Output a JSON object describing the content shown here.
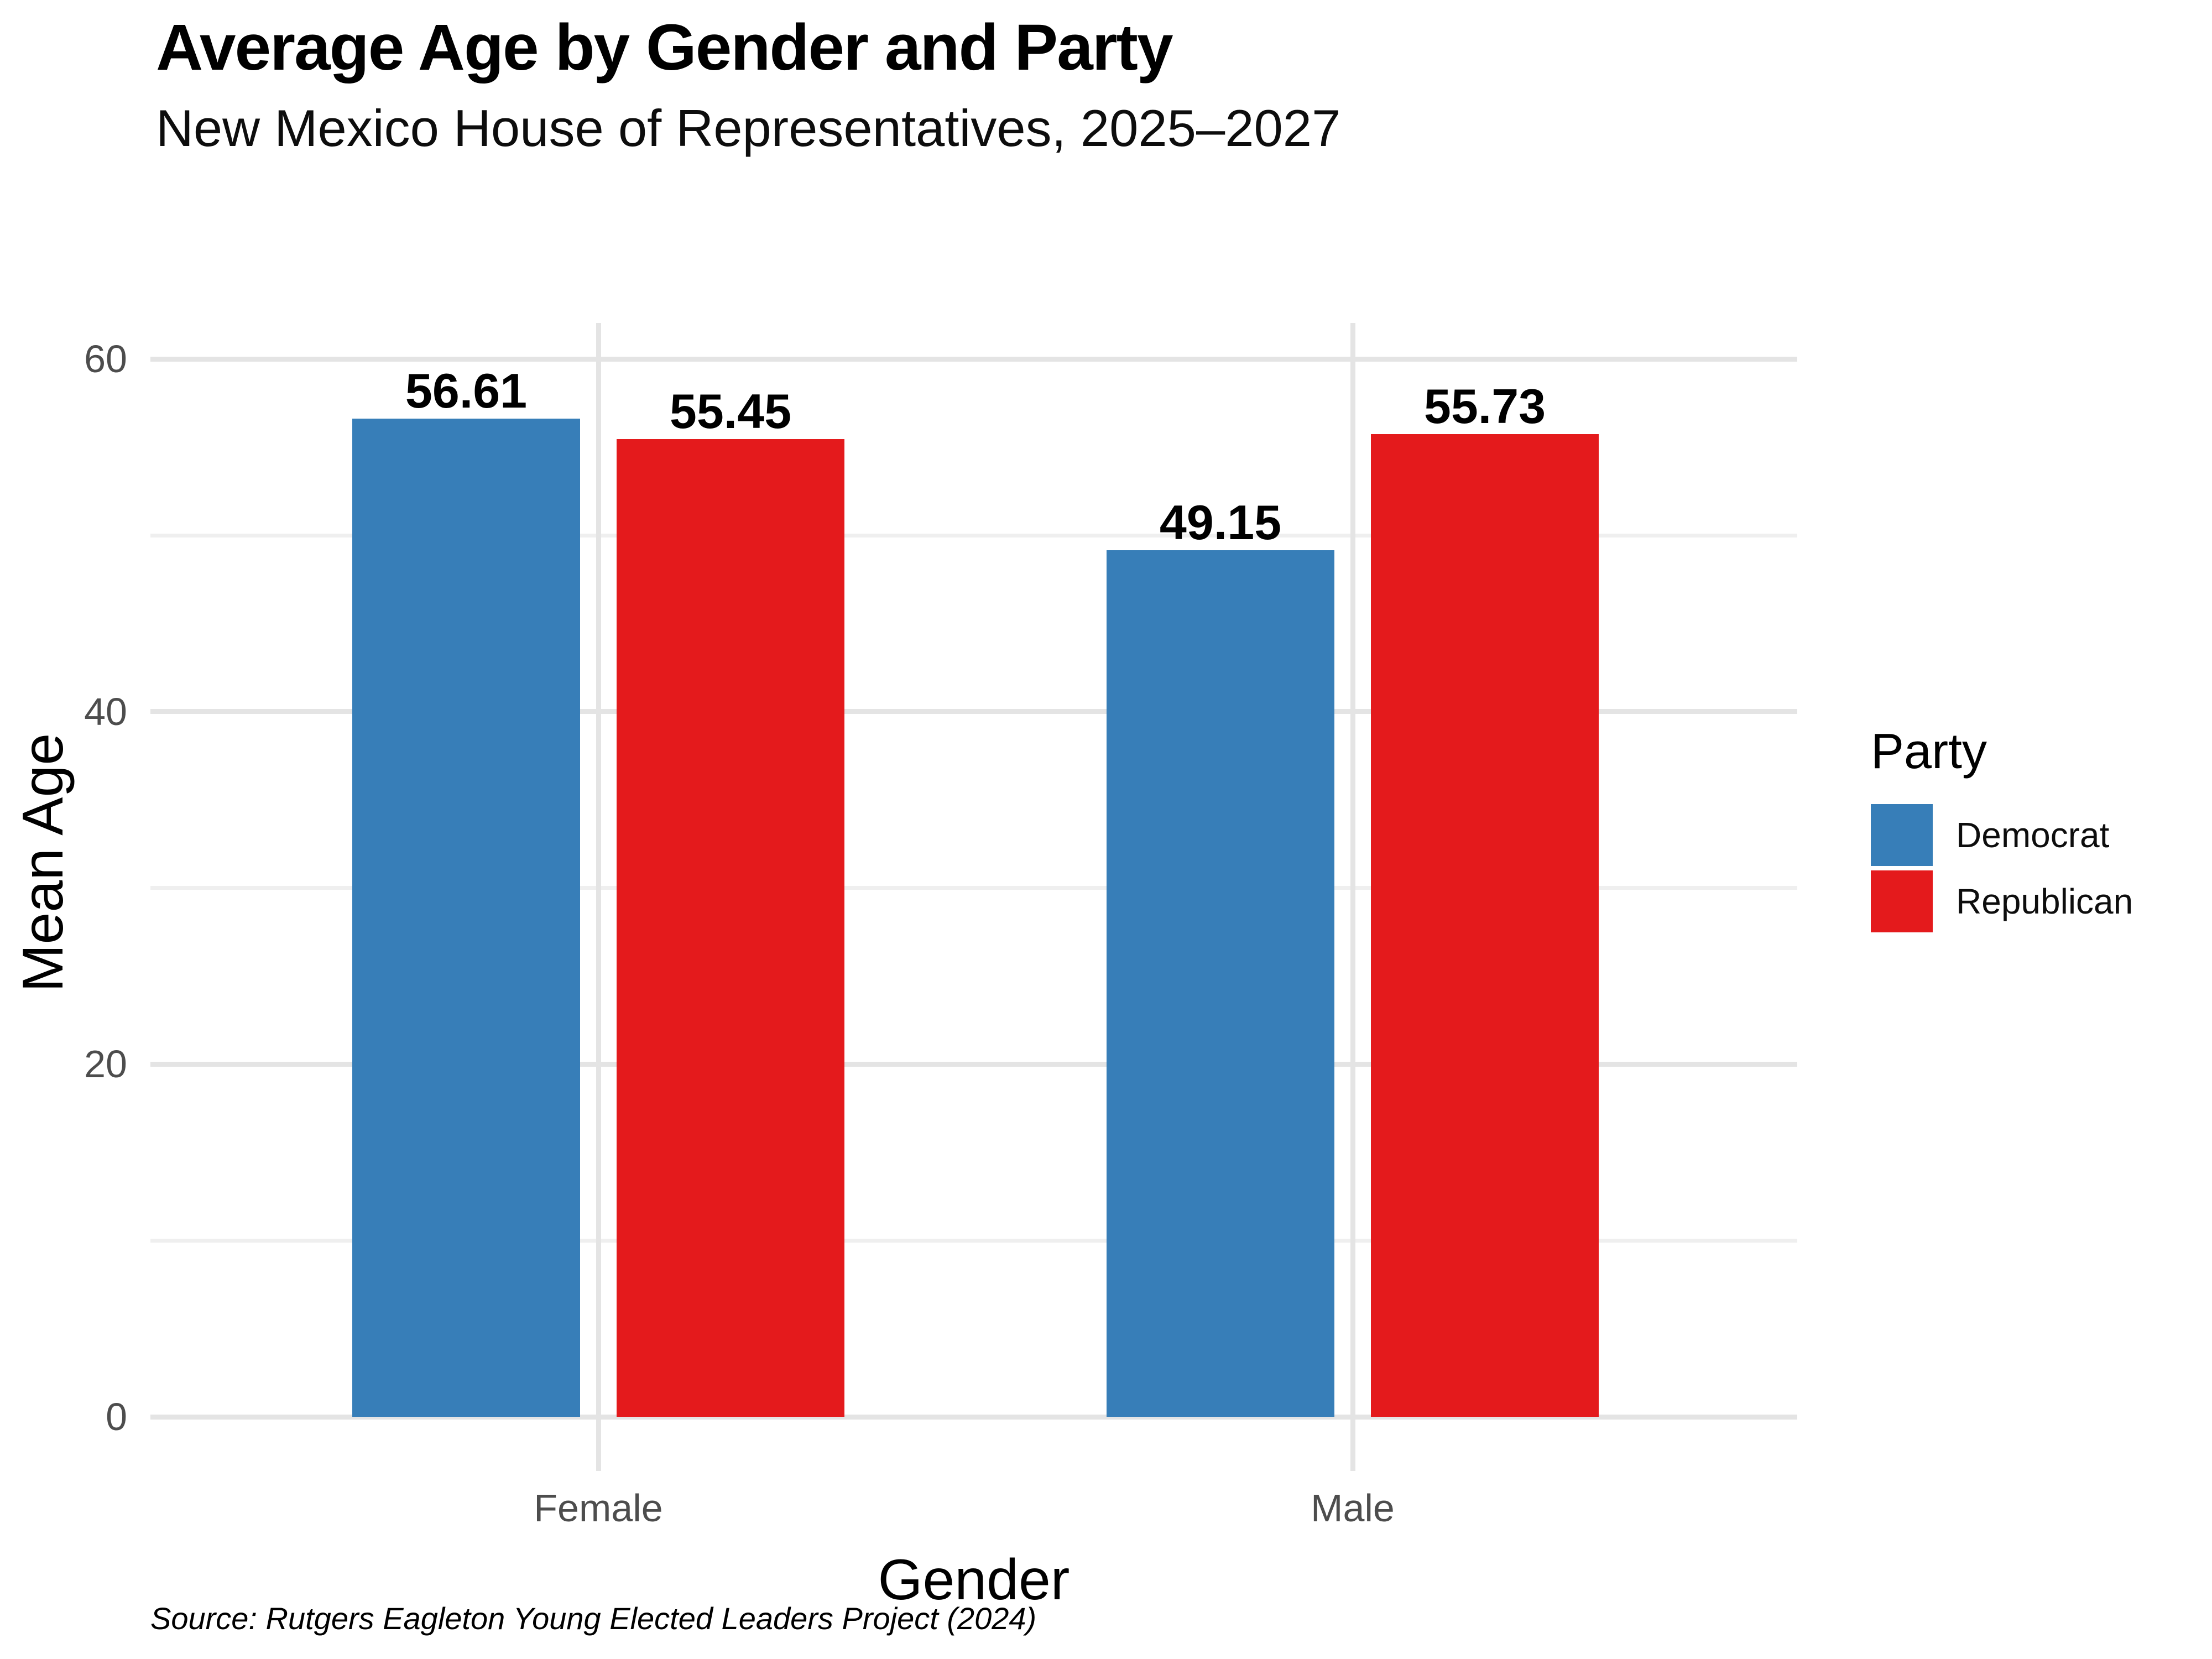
{
  "header": {
    "title": "Average Age by Gender and Party",
    "subtitle": "New Mexico House of Representatives, 2025–2027"
  },
  "axes": {
    "x_title": "Gender",
    "y_title": "Mean Age"
  },
  "legend": {
    "title": "Party",
    "items": [
      {
        "label": "Democrat",
        "color": "#377EB8"
      },
      {
        "label": "Republican",
        "color": "#E41A1C"
      }
    ]
  },
  "caption": "Source: Rutgers Eagleton Young Elected Leaders Project (2024)",
  "chart_data": {
    "type": "bar",
    "title": "Average Age by Gender and Party",
    "subtitle": "New Mexico House of Representatives, 2025–2027",
    "xlabel": "Gender",
    "ylabel": "Mean Age",
    "categories": [
      "Female",
      "Male"
    ],
    "series": [
      {
        "name": "Democrat",
        "color": "#377EB8",
        "values": [
          56.61,
          49.15
        ],
        "labels": [
          "56.61",
          "49.15"
        ]
      },
      {
        "name": "Republican",
        "color": "#E41A1C",
        "values": [
          55.45,
          55.73
        ],
        "labels": [
          "55.45",
          "55.73"
        ]
      }
    ],
    "ylim": [
      0,
      62
    ],
    "yticks": [
      0,
      20,
      40,
      60
    ],
    "yminor": [
      10,
      30,
      50
    ],
    "grid": true,
    "legend_title": "Party",
    "legend_position": "right",
    "bar_value_labels_shown": true,
    "caption": "Source: Rutgers Eagleton Young Elected Leaders Project (2024)"
  }
}
